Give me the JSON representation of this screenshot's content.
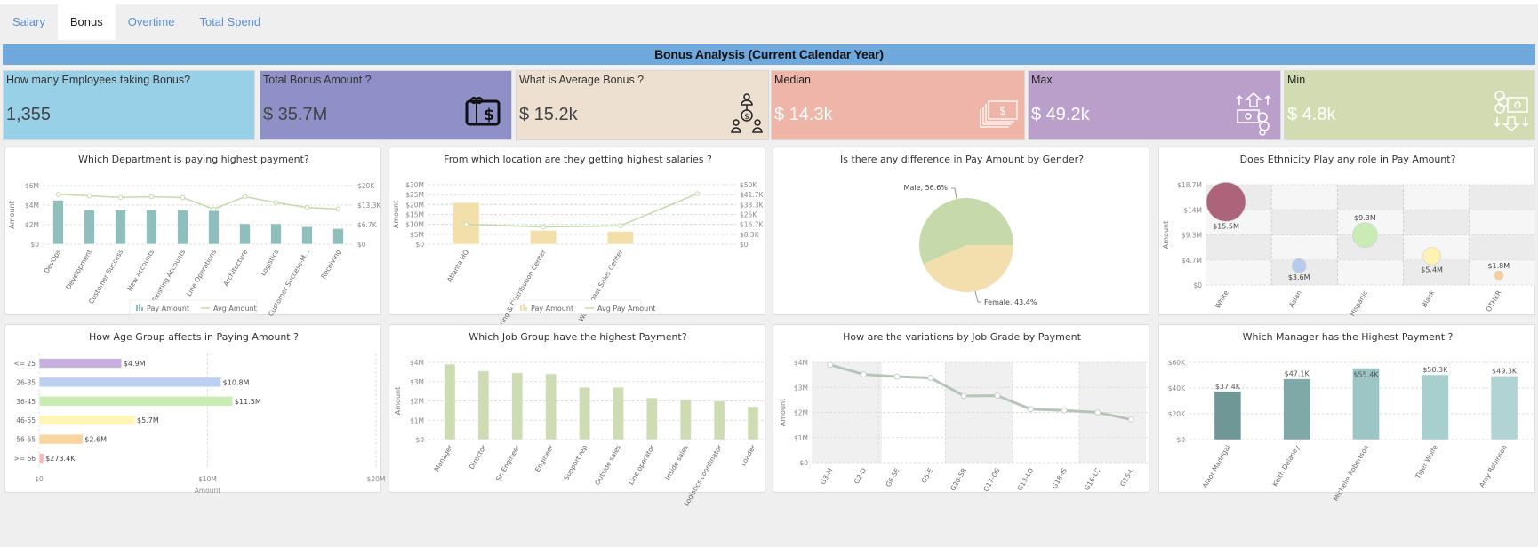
{
  "tabs": [
    {
      "label": "Salary"
    },
    {
      "label": "Bonus",
      "active": true
    },
    {
      "label": "Overtime"
    },
    {
      "label": "Total Spend"
    }
  ],
  "banner": "Bonus Analysis (Current Calendar Year)",
  "kpis": [
    {
      "title": "How many Employees taking Bonus?",
      "value": "1,355",
      "color": "#98d0e8"
    },
    {
      "title": "Total Bonus Amount ?",
      "value": "$ 35.7M",
      "color": "#9090c8",
      "icon": "gift-card-dollar-icon"
    },
    {
      "title": "What is Average Bonus ?",
      "value": "$ 15.2k",
      "color": "#eee0d0",
      "icon": "people-dollar-network-icon"
    },
    {
      "title": "Median",
      "value": "$ 14.3k",
      "color": "#eeb5a8",
      "icon": "cash-stack-icon"
    },
    {
      "title": "Max",
      "value": "$ 49.2k",
      "color": "#bb9fcb",
      "icon": "money-up-arrows-icon"
    },
    {
      "title": "Min",
      "value": "$ 4.8k",
      "color": "#d3dbb3",
      "icon": "money-down-arrows-icon"
    }
  ],
  "chart_data": [
    {
      "type": "bar",
      "title": "Which Department is paying highest payment?",
      "ylabel": "Amount",
      "categories": [
        "DevOps",
        "Development",
        "Customer Success",
        "New accounts",
        "Existing Accounts",
        "Line Operations",
        "Architecture",
        "Logistics",
        "Customer Success-M...",
        "Receiving"
      ],
      "series": [
        {
          "name": "Pay Amount",
          "type": "bar",
          "axis": "left",
          "unit": "$M",
          "values": [
            4.5,
            3.5,
            3.5,
            3.5,
            3.5,
            3.45,
            2.1,
            2.1,
            1.8,
            1.6
          ],
          "color": "#8fbfbd"
        },
        {
          "name": "Avg Amount",
          "type": "line",
          "axis": "right",
          "unit": "$K",
          "values": [
            17,
            16.5,
            16,
            16.2,
            15.9,
            12,
            16.2,
            14.2,
            12.5,
            12
          ],
          "color": "#c5d9a8"
        }
      ],
      "ylim": [
        0,
        6
      ],
      "y2lim": [
        0,
        20
      ],
      "yticks": [
        "$0",
        "$2M",
        "$4M",
        "$6M"
      ],
      "y2ticks": [
        "$0",
        "$6.7K",
        "$13.3K",
        "$20K"
      ],
      "legend": "bottom",
      "grid": true
    },
    {
      "type": "bar",
      "title": "From which location are they getting highest salaries ?",
      "ylabel": "Amount",
      "categories": [
        "Atlanta HQ",
        "Manufacturing & Distribution Center",
        "West Coast Sales Center",
        ""
      ],
      "series": [
        {
          "name": "Pay Amount",
          "type": "bar",
          "axis": "left",
          "unit": "$M",
          "values": [
            21,
            7,
            6.5,
            null
          ],
          "color": "#f3dfaa"
        },
        {
          "name": "Avg Pay Amount",
          "type": "line",
          "axis": "right",
          "unit": "$K",
          "values": [
            16.7,
            14.5,
            15.5,
            42.5
          ],
          "color": "#c5d9a8"
        }
      ],
      "ylim": [
        0,
        30
      ],
      "y2lim": [
        0,
        50
      ],
      "yticks": [
        "$0",
        "$5M",
        "$10M",
        "$15M",
        "$20M",
        "$25M",
        "$30M"
      ],
      "y2ticks": [
        "$0",
        "$8.3K",
        "$16.7K",
        "$25K",
        "$33.3K",
        "$41.7K",
        "$50K"
      ],
      "legend": "bottom",
      "grid": true
    },
    {
      "type": "pie",
      "title": "Is there any difference in Pay Amount by Gender?",
      "slices": [
        {
          "name": "Male",
          "value": 56.6,
          "label": "Male, 56.6%",
          "color": "#c5d9ab"
        },
        {
          "name": "Female",
          "value": 43.4,
          "label": "Female, 43.4%",
          "color": "#f3dfad"
        }
      ]
    },
    {
      "type": "scatter",
      "title": "Does Ethnicity Play any role in Pay Amount?",
      "ylabel": "Amount",
      "categories": [
        "White",
        "Asian",
        "Hispanic",
        "Black",
        "OTHER"
      ],
      "values": [
        15.5,
        3.6,
        9.3,
        5.4,
        1.8
      ],
      "labels": [
        "$15.5M",
        "$3.6M",
        "$9.3M",
        "$5.4M",
        "$1.8M"
      ],
      "colors": [
        "#ad647b",
        "#b7cbef",
        "#c9ecb4",
        "#fff2b3",
        "#f7cf99"
      ],
      "ylim": [
        0,
        18.7
      ],
      "yticks": [
        "$0",
        "$4.7M",
        "$9.3M",
        "$14M",
        "$18.7M"
      ],
      "grid": true
    },
    {
      "type": "bar",
      "orientation": "horizontal",
      "title": "How Age Group affects in Paying Amount ?",
      "xlabel": "Amount",
      "categories": [
        "<= 25",
        "26-35",
        "36-45",
        "46-55",
        "56-65",
        ">= 66"
      ],
      "values": [
        4.9,
        10.8,
        11.5,
        5.7,
        2.6,
        0.2734
      ],
      "labels": [
        "$4.9M",
        "$10.8M",
        "$11.5M",
        "$5.7M",
        "$2.6M",
        "$273.4K"
      ],
      "colors": [
        "#c5b0e0",
        "#bcd0f2",
        "#c8edb3",
        "#fff5b8",
        "#f8d49e",
        "#f9b9b9"
      ],
      "xlim": [
        0,
        20
      ],
      "xticks": [
        "$0",
        "$10M",
        "$20M"
      ],
      "grid": true
    },
    {
      "type": "bar",
      "title": "Which Job Group have the highest Payment?",
      "ylabel": "Amount",
      "categories": [
        "Manager",
        "Director",
        "Sr. Engineer",
        "Engineer",
        "Support rep",
        "Outside sales",
        "Line operator",
        "Inside sales",
        "Logistics coordinator",
        "Loader"
      ],
      "values": [
        3.9,
        3.55,
        3.45,
        3.4,
        2.7,
        2.7,
        2.15,
        2.07,
        1.98,
        1.7
      ],
      "color": "#cddcb3",
      "ylim": [
        0,
        4
      ],
      "yticks": [
        "$0",
        "$1M",
        "$2M",
        "$3M",
        "$4M"
      ],
      "grid": true
    },
    {
      "type": "line",
      "title": "How are the variations by Job Grade by Payment",
      "ylabel": "Amount",
      "categories": [
        "G3-M",
        "G2-D",
        "G6-SE",
        "G5-E",
        "G20-SR",
        "G17-OS",
        "G13-LO",
        "G18-IS",
        "G16-LC",
        "G15-L"
      ],
      "values": [
        3.9,
        3.52,
        3.43,
        3.38,
        2.66,
        2.67,
        2.13,
        2.08,
        2.0,
        1.72
      ],
      "color": "#b5c6b8",
      "ylim": [
        0,
        4
      ],
      "yticks": [
        "$0",
        "$1M",
        "$2M",
        "$3M",
        "$4M"
      ],
      "grid": true
    },
    {
      "type": "bar",
      "title": "Which Manager has the Highest Payment ?",
      "categories": [
        "Alaor Madrigal",
        "Keith Delaney",
        "Michelle Robertson",
        "Tiger Wolfe",
        "Amy Robinson"
      ],
      "values": [
        37.4,
        47.1,
        55.4,
        50.3,
        49.3
      ],
      "labels": [
        "$37.4K",
        "$47.1K",
        "$55.4K",
        "$50.3K",
        "$49.3K"
      ],
      "colors": [
        "#6e9795",
        "#7ea9a7",
        "#9cc6c5",
        "#a6cfcd",
        "#b1d3d3"
      ],
      "ylim": [
        0,
        60
      ],
      "yticks": [
        "$0",
        "$20K",
        "$40K",
        "$60K"
      ],
      "grid": true
    }
  ]
}
